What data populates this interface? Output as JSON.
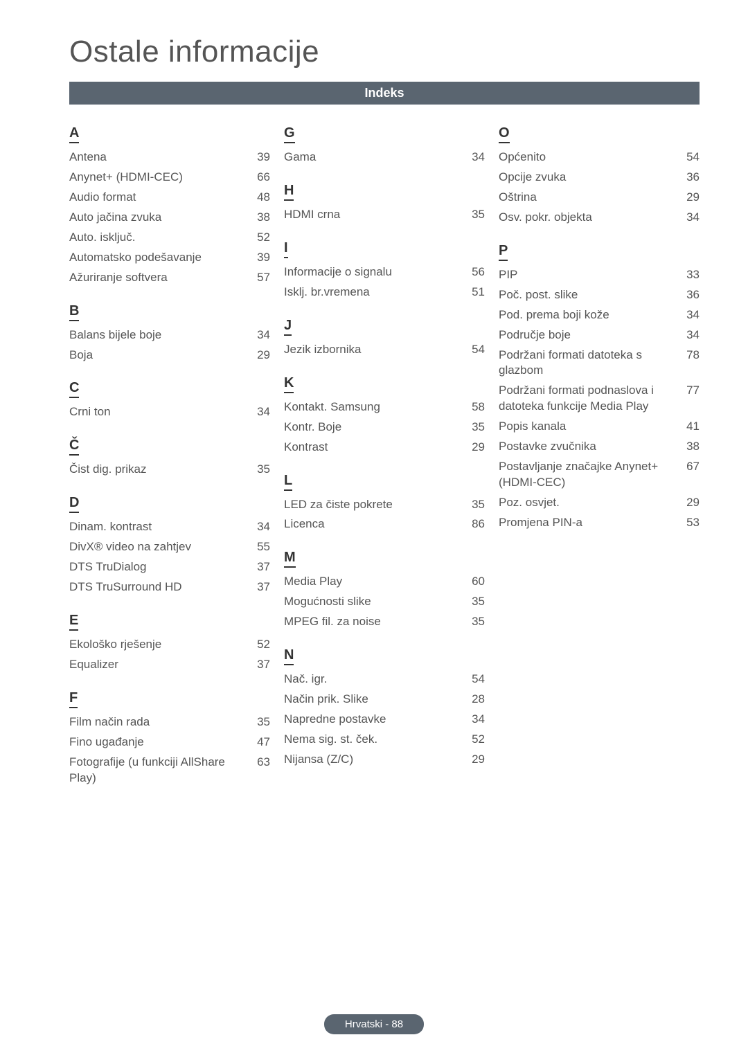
{
  "page_title": "Ostale informacije",
  "section_title": "Indeks",
  "footer": "Hrvatski - 88",
  "columns": [
    {
      "groups": [
        {
          "letter": "A",
          "first": true,
          "entries": [
            {
              "label": "Antena",
              "page": "39"
            },
            {
              "label": "Anynet+ (HDMI-CEC)",
              "page": "66"
            },
            {
              "label": "Audio format",
              "page": "48"
            },
            {
              "label": "Auto jačina zvuka",
              "page": "38"
            },
            {
              "label": "Auto. isključ.",
              "page": "52"
            },
            {
              "label": "Automatsko podešavanje",
              "page": "39"
            },
            {
              "label": "Ažuriranje softvera",
              "page": "57"
            }
          ]
        },
        {
          "letter": "B",
          "entries": [
            {
              "label": "Balans bijele boje",
              "page": "34"
            },
            {
              "label": "Boja",
              "page": "29"
            }
          ]
        },
        {
          "letter": "C",
          "entries": [
            {
              "label": "Crni ton",
              "page": "34"
            }
          ]
        },
        {
          "letter": "Č",
          "entries": [
            {
              "label": "Čist dig. prikaz",
              "page": "35"
            }
          ]
        },
        {
          "letter": "D",
          "entries": [
            {
              "label": "Dinam. kontrast",
              "page": "34"
            },
            {
              "label": "DivX® video na zahtjev",
              "page": "55"
            },
            {
              "label": "DTS TruDialog",
              "page": "37"
            },
            {
              "label": "DTS TruSurround HD",
              "page": "37"
            }
          ]
        },
        {
          "letter": "E",
          "entries": [
            {
              "label": "Ekološko rješenje",
              "page": "52"
            },
            {
              "label": "Equalizer",
              "page": "37"
            }
          ]
        },
        {
          "letter": "F",
          "entries": [
            {
              "label": "Film način rada",
              "page": "35"
            },
            {
              "label": "Fino ugađanje",
              "page": "47"
            },
            {
              "label": "Fotografije\n(u funkciji AllShare Play)",
              "page": "63"
            }
          ]
        }
      ]
    },
    {
      "groups": [
        {
          "letter": "G",
          "first": true,
          "entries": [
            {
              "label": "Gama",
              "page": "34"
            }
          ]
        },
        {
          "letter": "H",
          "entries": [
            {
              "label": "HDMI crna",
              "page": "35"
            }
          ]
        },
        {
          "letter": "I",
          "entries": [
            {
              "label": "Informacije o signalu",
              "page": "56"
            },
            {
              "label": "Isklj. br.vremena",
              "page": "51"
            }
          ]
        },
        {
          "letter": "J",
          "entries": [
            {
              "label": "Jezik izbornika",
              "page": "54"
            }
          ]
        },
        {
          "letter": "K",
          "entries": [
            {
              "label": "Kontakt. Samsung",
              "page": "58"
            },
            {
              "label": "Kontr. Boje",
              "page": "35"
            },
            {
              "label": "Kontrast",
              "page": "29"
            }
          ]
        },
        {
          "letter": "L",
          "entries": [
            {
              "label": "LED za čiste pokrete",
              "page": "35"
            },
            {
              "label": "Licenca",
              "page": "86"
            }
          ]
        },
        {
          "letter": "M",
          "entries": [
            {
              "label": "Media Play",
              "page": "60"
            },
            {
              "label": "Mogućnosti slike",
              "page": "35"
            },
            {
              "label": "MPEG fil. za noise",
              "page": "35"
            }
          ]
        },
        {
          "letter": "N",
          "entries": [
            {
              "label": "Nač. igr.",
              "page": "54"
            },
            {
              "label": "Način prik. Slike",
              "page": "28"
            },
            {
              "label": "Napredne postavke",
              "page": "34"
            },
            {
              "label": "Nema sig. st. ček.",
              "page": "52"
            },
            {
              "label": "Nijansa (Z/C)",
              "page": "29"
            }
          ]
        }
      ]
    },
    {
      "groups": [
        {
          "letter": "O",
          "first": true,
          "entries": [
            {
              "label": "Općenito",
              "page": "54"
            },
            {
              "label": "Opcije zvuka",
              "page": "36"
            },
            {
              "label": "Oštrina",
              "page": "29"
            },
            {
              "label": "Osv. pokr. objekta",
              "page": "34"
            }
          ]
        },
        {
          "letter": "P",
          "entries": [
            {
              "label": "PIP",
              "page": "33"
            },
            {
              "label": "Poč. post. slike",
              "page": "36"
            },
            {
              "label": "Pod. prema boji kože",
              "page": "34"
            },
            {
              "label": "Područje boje",
              "page": "34"
            },
            {
              "label": "Podržani formati datoteka s glazbom",
              "page": "78"
            },
            {
              "label": "Podržani formati podnaslova i datoteka funkcije Media Play",
              "page": "77"
            },
            {
              "label": "Popis kanala",
              "page": "41"
            },
            {
              "label": "Postavke zvučnika",
              "page": "38"
            },
            {
              "label": "Postavljanje značajke Anynet+ (HDMI-CEC)",
              "page": "67"
            },
            {
              "label": "Poz. osvjet.",
              "page": "29"
            },
            {
              "label": "Promjena PIN-a",
              "page": "53"
            }
          ]
        }
      ]
    }
  ]
}
